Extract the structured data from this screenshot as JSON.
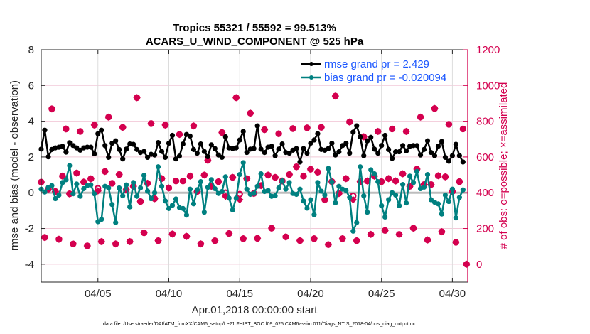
{
  "chart_data": {
    "type": "line",
    "title": [
      "Tropics 55321 / 55592 = 99.513%",
      "ACARS_U_WIND_COMPONENT @ 525 hPa"
    ],
    "xlabel": "Apr.01,2018 00:00:00 start",
    "ylabel": "rmse and bias (model - observation)",
    "ylabel_right": "# of obs: o=possible; ×=assimilated",
    "x_start": "2018-04-01 00:00",
    "x_end": "2018-05-01 02:00",
    "x_interval": "6 hours",
    "xtick_labels": [
      "04/05",
      "04/10",
      "04/15",
      "04/20",
      "04/25",
      "04/30"
    ],
    "xtick_dates": [
      "2018-04-05",
      "2018-04-10",
      "2018-04-15",
      "2018-04-20",
      "2018-04-25",
      "2018-04-30"
    ],
    "ylim": [
      -5,
      8
    ],
    "yticks": [
      -4,
      -2,
      0,
      2,
      4,
      6,
      8
    ],
    "ylim_right": [
      -100,
      1200
    ],
    "yticks_right": [
      0,
      200,
      400,
      600,
      800,
      1000,
      1200
    ],
    "grid": true,
    "legend_position": "top-right",
    "colors": {
      "rmse": "#000000",
      "bias": "#008080",
      "obs": "#d4004f",
      "legend_text": "#1a56ff",
      "zero_line": "#bdbdbd"
    },
    "series": [
      {
        "name": "rmse grand pr = 2.429",
        "axis": "left",
        "values": [
          2.44,
          3.5,
          2.01,
          2.42,
          2.51,
          2.55,
          2.6,
          2.27,
          2.8,
          2.64,
          2.51,
          2.38,
          2.51,
          2.55,
          2.55,
          2.18,
          3.3,
          3.5,
          2.64,
          1.98,
          2.77,
          2.9,
          2.42,
          1.89,
          2.44,
          2.73,
          2.71,
          2.42,
          2.25,
          2.31,
          1.98,
          2.15,
          2.11,
          2.81,
          2.31,
          1.98,
          2.77,
          3.21,
          1.89,
          2.05,
          2.73,
          3.26,
          3.17,
          2.42,
          2.21,
          2.73,
          2.31,
          2.02,
          2.68,
          2.47,
          2.11,
          1.98,
          3.13,
          2.51,
          2.47,
          2.51,
          2.95,
          3.43,
          2.25,
          2.44,
          2.47,
          3.74,
          2.44,
          2.25,
          2.55,
          2.6,
          2.07,
          2.44,
          2.73,
          2.25,
          2.21,
          2.38,
          2.47,
          1.72,
          2.47,
          2.21,
          2.77,
          2.95,
          3.3,
          2.42,
          2.38,
          2.47,
          2.77,
          2.11,
          2.29,
          2.64,
          2.77,
          2.21,
          3.39,
          3.74,
          3.13,
          2.07,
          2.9,
          3.1,
          2.44,
          2.21,
          2.64,
          3.21,
          2.42,
          1.92,
          2.29,
          2.29,
          2.64,
          2.34,
          2.6,
          2.64,
          2.64,
          2.11,
          2.42,
          2.9,
          2.25,
          2.07,
          2.6,
          2.87,
          1.98,
          1.76,
          2.07,
          2.71,
          2.07,
          1.72,
          null
        ]
      },
      {
        "name": "bias grand pr = -0.020094",
        "axis": "left",
        "values": [
          0.2,
          0.04,
          0.3,
          0.4,
          -0.33,
          -0.13,
          0.57,
          0.73,
          1.52,
          -0.06,
          0.49,
          -0.2,
          0.23,
          0.4,
          0.44,
          -0.06,
          -1.62,
          -1.49,
          0.36,
          0.27,
          -0.66,
          -1.67,
          0.27,
          -0.17,
          0.44,
          -0.79,
          0.57,
          -0.2,
          0.27,
          0.97,
          0.09,
          -0.33,
          0.0,
          1.45,
          0.36,
          -0.46,
          -0.88,
          -0.7,
          -0.35,
          -0.83,
          -0.88,
          -1.25,
          0.2,
          -0.62,
          0.17,
          0.62,
          -1.09,
          0.3,
          0.73,
          0.23,
          -0.04,
          0.07,
          0.89,
          -0.3,
          -0.96,
          -0.3,
          1.02,
          1.68,
          0.2,
          -0.09,
          -0.04,
          0.36,
          1.06,
          0.07,
          0.13,
          -0.2,
          -0.17,
          0.27,
          0.66,
          0.2,
          0.57,
          -0.04,
          -0.09,
          0.2,
          -0.46,
          -0.86,
          -0.39,
          -1.23,
          0.57,
          0.09,
          -0.13,
          1.36,
          0.6,
          -0.56,
          0.36,
          0.2,
          0.13,
          -0.26,
          -2.15,
          -1.67,
          1.45,
          -0.17,
          -1.09,
          1.28,
          1.06,
          0.62,
          -0.72,
          -1.36,
          -0.39,
          0.0,
          -0.13,
          -0.72,
          0.46,
          -0.57,
          0.93,
          0.57,
          1.19,
          0.23,
          0.31,
          1.02,
          -0.39,
          -0.53,
          -0.62,
          -1.19,
          -0.13,
          -0.49,
          0.2,
          -1.41,
          -0.26,
          0.16,
          null
        ]
      },
      {
        "name": "possible",
        "axis": "right",
        "marker": "o",
        "values": [
          460,
          150,
          420,
          869,
          407,
          140,
          493,
          757,
          394,
          114,
          510,
          743,
          460,
          103,
          478,
          779,
          425,
          127,
          519,
          823,
          453,
          114,
          502,
          766,
          417,
          127,
          436,
          932,
          351,
          176,
          453,
          787,
          367,
          132,
          479,
          779,
          427,
          169,
          466,
          726,
          466,
          156,
          493,
          774,
          407,
          114,
          499,
          581,
          436,
          132,
          462,
          737,
          400,
          172,
          486,
          932,
          392,
          143,
          479,
          845,
          396,
          145,
          440,
          753,
          499,
          202,
          486,
          730,
          466,
          153,
          502,
          759,
          545,
          132,
          493,
          763,
          532,
          143,
          515,
          766,
          361,
          110,
          462,
          941,
          396,
          143,
          479,
          796,
          383,
          132,
          462,
          713,
          466,
          167,
          493,
          743,
          462,
          189,
          479,
          757,
          466,
          167,
          506,
          743,
          436,
          202,
          532,
          823,
          446,
          136,
          446,
          871,
          495,
          182,
          489,
          783,
          407,
          123,
          462,
          757,
          0
        ]
      },
      {
        "name": "assimilated",
        "axis": "right",
        "marker": "x",
        "values": [
          460,
          150,
          420,
          869,
          407,
          140,
          493,
          757,
          394,
          114,
          510,
          743,
          460,
          103,
          478,
          779,
          410,
          127,
          519,
          823,
          453,
          114,
          502,
          766,
          417,
          127,
          436,
          932,
          351,
          176,
          453,
          787,
          367,
          132,
          479,
          779,
          427,
          169,
          466,
          726,
          466,
          156,
          493,
          774,
          407,
          114,
          499,
          581,
          436,
          132,
          462,
          737,
          380,
          172,
          486,
          932,
          361,
          143,
          479,
          845,
          396,
          145,
          440,
          753,
          499,
          202,
          486,
          730,
          466,
          153,
          502,
          759,
          545,
          132,
          493,
          763,
          532,
          143,
          515,
          766,
          361,
          110,
          462,
          941,
          396,
          143,
          479,
          796,
          361,
          132,
          462,
          713,
          466,
          167,
          493,
          743,
          462,
          189,
          479,
          757,
          466,
          167,
          506,
          743,
          436,
          202,
          532,
          823,
          446,
          136,
          446,
          871,
          495,
          182,
          489,
          783,
          407,
          123,
          462,
          757,
          0
        ]
      }
    ]
  },
  "footer": "data file: /Users/raeder/DAI/ATM_forcXX/CAM6_setup/f.e21.FHIST_BGC.f09_025.CAM6assim.011/Diags_NTrS_2018-04/obs_diag_output.nc"
}
